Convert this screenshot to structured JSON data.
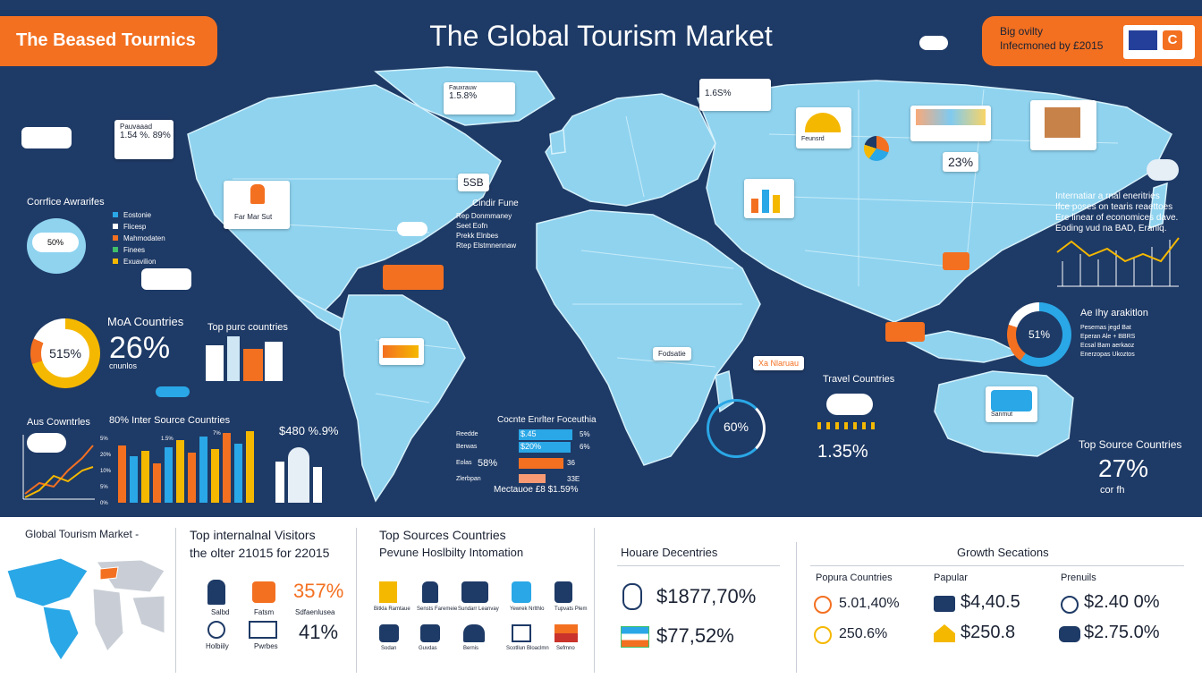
{
  "header": {
    "title": "The Global Tourism Market",
    "brand": "The Beased Tournics",
    "badge_line1": "Big ovilty",
    "badge_line2": "Infecmoned by £2015"
  },
  "colors": {
    "background": "#1e3a66",
    "land": "#8fd3ef",
    "land_edge": "#c9ecf8",
    "accent_orange": "#f37021",
    "accent_yellow": "#f5b800",
    "accent_blue": "#2aa7e6"
  },
  "map_labels": {
    "na_stat": "1.54 %. 89%",
    "na_stat_head": "Pauvaaad",
    "na_photo_caption": "Far Mar Sut",
    "greenland_head": "Fauxrauw",
    "greenland_value": "1.5.8%",
    "europe_value": "1.6S%",
    "asia_pct": "23%",
    "africa_caption": "Fodsatie",
    "asia_caption": "Xa Nlaruau",
    "australia_caption": "Sanmut",
    "mid_chip": "5SB",
    "mid_chip_caption": "Cindir Fune",
    "mid_list": [
      "Rep Donmmaney",
      "Seet Eofn",
      "Prekk Elnbes",
      "Rtep Elstmnennaw"
    ],
    "left_legend_title": "Corrfice Awrarifes",
    "left_legend": [
      "Eostonie",
      "Flicesp",
      "Mahmodaten",
      "Finees",
      "Exuavilion"
    ],
    "cloud_chip": "50%",
    "right_text": [
      "Internatiar a rnal eneritries",
      "Ifce poses on tearis reaettoes",
      "Ere linear of economices dave.",
      "Eoding vud na BAD, Eraniq."
    ],
    "right_donut_head": "Ae Ihy arakitlon",
    "right_donut_list": [
      "Pesemas jegd Bat",
      "Eperan Ale + BBRS",
      "Ecsal Bam aerkaoz",
      "Enerzopas Ukoztos"
    ],
    "right_donut_pct": "51%",
    "asia_small": "Feunsrd"
  },
  "left_panels": {
    "donut_label": "515%",
    "mid_heading": "MoA Countries",
    "big_pct": "26%",
    "big_pct_sub": "cnunlos",
    "top_countries": "Top purc countries",
    "aus_countries": "Aus Cowntrles",
    "bars_title": "80% Inter Source Countries",
    "bars_stat": "$480 %.9%"
  },
  "bar_chart": {
    "ylabels": [
      "5%",
      "20%",
      "10%",
      "5%",
      "0%"
    ],
    "top_labels": [
      "1.5%",
      "7%"
    ]
  },
  "mid_bars": {
    "title": "Cocnte Enrlter Foceuthia",
    "rows": [
      {
        "label": "Reedde",
        "value": "$.45",
        "pct": "5%"
      },
      {
        "label": "Berwas",
        "value": "$20%",
        "pct": "6%"
      },
      {
        "label": "Eolas",
        "value": "58%",
        "pct": "36"
      },
      {
        "label": "Zlerbpan",
        "value": "",
        "pct": "33E"
      }
    ],
    "footer": "Mectauoe £8 $1.59%"
  },
  "right_panels": {
    "gauge_pct": "60%",
    "travel_title": "Travel Countries",
    "travel_pct": "1.35%",
    "top_source_title": "Top Source Countries",
    "top_source_pct": "27%",
    "top_source_sub": "cor fh"
  },
  "bottom": {
    "col1_title": "Global Tourism Market -",
    "col2_title1": "Top internalnal Visitors",
    "col2_title2": "the olter 21015 for 22015",
    "col2_pct1": "357%",
    "col2_pct2": "41%",
    "col2_caption1": "Sdfaenlusea",
    "col2_labels": [
      "Salbd",
      "Fatsm",
      "Holbiily",
      "Pwrbes"
    ],
    "col3_title1": "Top Sources Countries",
    "col3_title2": "Pevune Hoslbilty Intomation",
    "col3_labels": [
      "Bitkla Ramtaue",
      "Sensts Faremeie",
      "Sundarr Leanvay",
      "Yewrek Nrlthlo",
      "Tupvats Plem"
    ],
    "col3_labels2": [
      "Sodan",
      "Guvdas",
      "Bernis",
      "Scotllun Bloaclmn",
      "Sefmno"
    ],
    "col4_title": "Houare Decentries",
    "col4_value1": "$1877,70%",
    "col4_value2": "$77,52%",
    "col5_title": "Growth Secations",
    "col5_h1": "Popura Countries",
    "col5_h2": "Papular",
    "col5_h3": "Prenuils",
    "col5_v": [
      "5.01,40%",
      "$4,40.5",
      "$2.40 0%",
      "250.6%",
      "$250.8",
      "$2.75.0%"
    ]
  }
}
